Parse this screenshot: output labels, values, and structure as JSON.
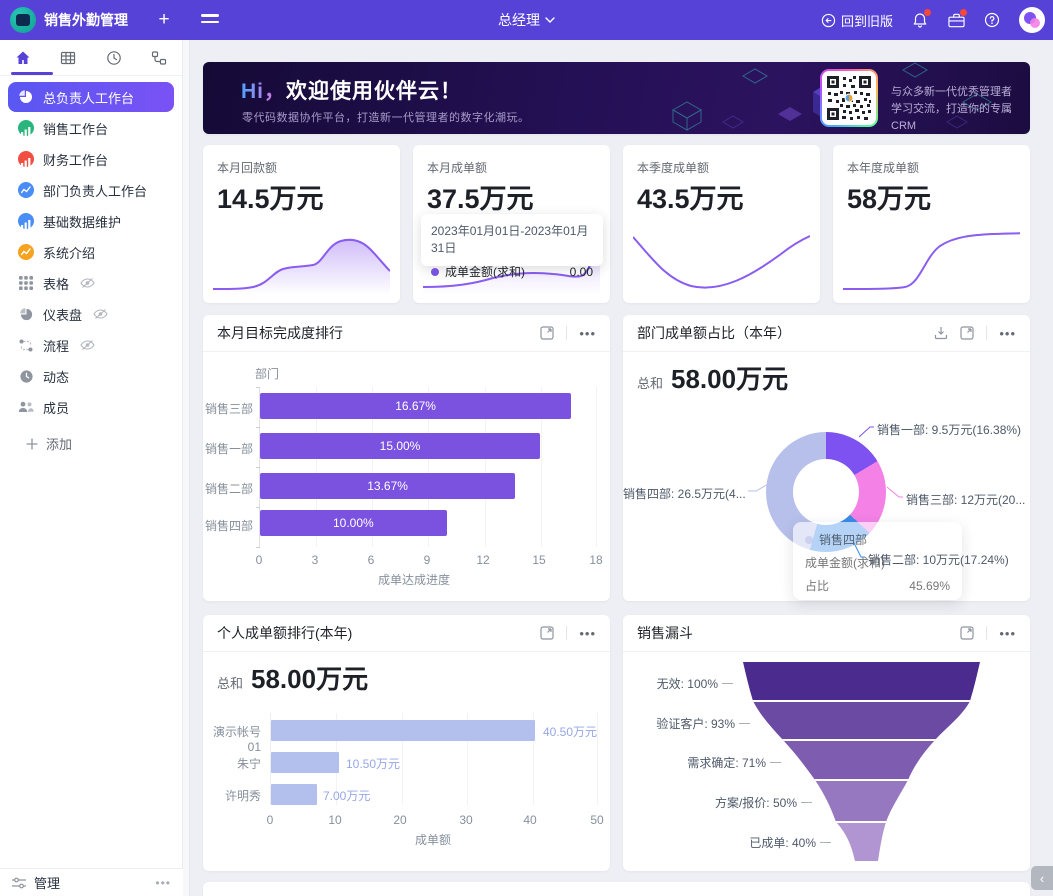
{
  "header": {
    "app_title": "销售外勤管理",
    "add_button": "+",
    "workspace": "总经理",
    "back_to_old": "回到旧版"
  },
  "sidebar": {
    "items": [
      {
        "label": "总负责人工作台",
        "icon": "pie-chart",
        "selected": true
      },
      {
        "label": "销售工作台",
        "icon": "bar-chart",
        "color": "#2ab57d"
      },
      {
        "label": "财务工作台",
        "icon": "bar-chart",
        "color": "#f04f42"
      },
      {
        "label": "部门负责人工作台",
        "icon": "line-chart",
        "color": "#4a8df5"
      },
      {
        "label": "基础数据维护",
        "icon": "bar-chart",
        "color": "#4a8df5"
      },
      {
        "label": "系统介绍",
        "icon": "line-chart",
        "color": "#f5a321"
      },
      {
        "label": "表格",
        "icon": "grid",
        "hidden_eye": true
      },
      {
        "label": "仪表盘",
        "icon": "dashboard",
        "hidden_eye": true
      },
      {
        "label": "流程",
        "icon": "flow",
        "hidden_eye": true
      },
      {
        "label": "动态",
        "icon": "activity"
      },
      {
        "label": "成员",
        "icon": "members"
      }
    ],
    "add_label": "添加",
    "manage_label": "管理"
  },
  "banner": {
    "title_hi": "Hi，",
    "title": "欢迎使用伙伴云！",
    "subtitle": "零代码数据协作平台，打造新一代管理者的数字化潮玩。",
    "qr_caption_line1": "与众多新一代优秀管理者",
    "qr_caption_line2": "学习交流，打造你的专属CRM"
  },
  "stat_cards": [
    {
      "label": "本月回款额",
      "value": "14.5万元"
    },
    {
      "label": "本月成单额",
      "value": "37.5万元",
      "tooltip": {
        "date_range": "2023年01月01日-2023年01月31日",
        "series": "成单金额(求和)",
        "value": "0.00"
      }
    },
    {
      "label": "本季度成单额",
      "value": "43.5万元"
    },
    {
      "label": "本年度成单额",
      "value": "58万元"
    }
  ],
  "chart_data": [
    {
      "id": "dept_target_rank",
      "type": "bar",
      "orientation": "horizontal",
      "title": "本月目标完成度排行",
      "ylabel": "部门",
      "xlabel": "成单达成进度",
      "categories": [
        "销售三部",
        "销售一部",
        "销售二部",
        "销售四部"
      ],
      "values": [
        16.67,
        15.0,
        13.67,
        10.0
      ],
      "value_labels": [
        "16.67%",
        "15.00%",
        "13.67%",
        "10.00%"
      ],
      "xlim": [
        0,
        18
      ],
      "xticks": [
        0,
        3,
        6,
        9,
        12,
        15,
        18
      ],
      "bar_color": "#7b52e0",
      "grid": true
    },
    {
      "id": "dept_share_donut",
      "type": "pie",
      "title": "部门成单额占比（本年）",
      "total_label": "总和",
      "total_value": "58.00万元",
      "slices": [
        {
          "name": "销售一部",
          "value_wan": 9.5,
          "pct": 16.38,
          "label": "销售一部: 9.5万元(16.38%)",
          "color": "#7d52f0"
        },
        {
          "name": "销售三部",
          "value_wan": 12,
          "pct": 20.69,
          "label": "销售三部: 12万元(20...",
          "color": "#f481e6"
        },
        {
          "name": "销售二部",
          "value_wan": 10,
          "pct": 17.24,
          "label": "销售二部: 10万元(17.24%)",
          "color": "#3a8ce8"
        },
        {
          "name": "销售四部",
          "value_wan": 26.5,
          "pct": 45.69,
          "label": "销售四部: 26.5万元(4...",
          "color": "#b7c0ea"
        }
      ],
      "tooltip": {
        "title": "销售四部",
        "series": "成单金额(求和)",
        "row_label": "占比",
        "row_value": "45.69%"
      }
    },
    {
      "id": "personal_rank",
      "type": "bar",
      "orientation": "horizontal",
      "title": "个人成单额排行(本年)",
      "total_label": "总和",
      "total_value": "58.00万元",
      "categories": [
        "演示帐号01",
        "朱宁",
        "许明秀"
      ],
      "values": [
        40.5,
        10.5,
        7.0
      ],
      "value_labels": [
        "40.50万元",
        "10.50万元",
        "7.00万元"
      ],
      "xlabel": "成单额",
      "xlim": [
        0,
        50
      ],
      "xticks": [
        0,
        10,
        20,
        30,
        40,
        50
      ],
      "bar_color": "#b3bfec",
      "grid": true
    },
    {
      "id": "sales_funnel",
      "type": "funnel",
      "title": "销售漏斗",
      "stages": [
        {
          "name": "无效",
          "pct": 100,
          "label": "无效: 100%",
          "color": "#4c2b8f"
        },
        {
          "name": "验证客户",
          "pct": 93,
          "label": "验证客户: 93%",
          "color": "#6b4aa3"
        },
        {
          "name": "需求确定",
          "pct": 71,
          "label": "需求确定: 71%",
          "color": "#7e5db1"
        },
        {
          "name": "方案/报价",
          "pct": 50,
          "label": "方案/报价: 50%",
          "color": "#9678c1"
        },
        {
          "name": "已成单",
          "pct": 40,
          "label": "已成单: 40%",
          "color": "#b095d2"
        }
      ]
    }
  ],
  "misc": {
    "collapse_glyph": "‹"
  }
}
